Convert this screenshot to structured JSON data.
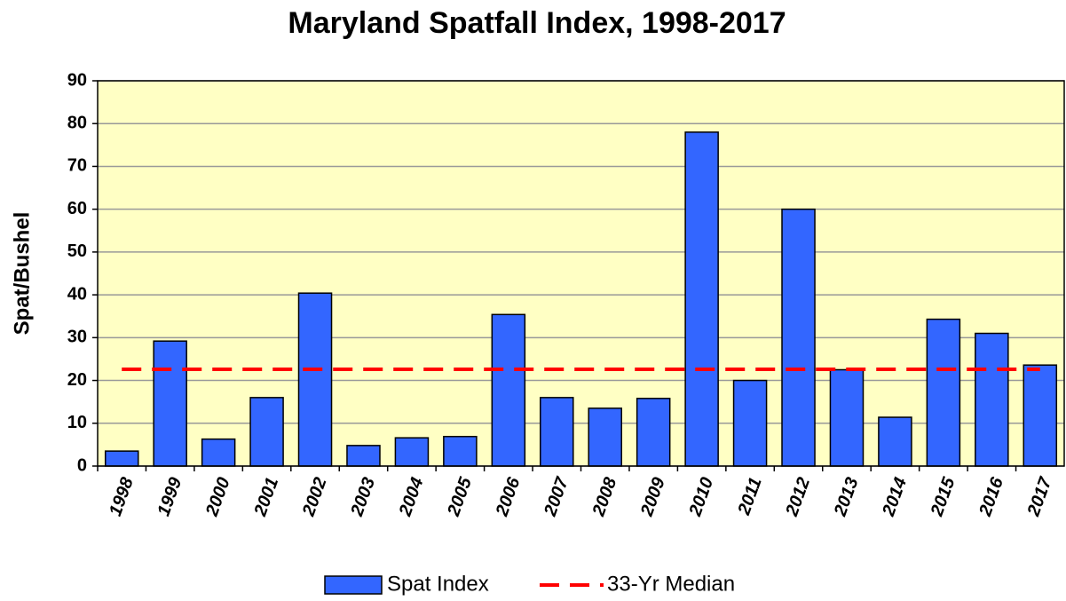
{
  "chart_data": {
    "type": "bar",
    "title": "Maryland Spatfall Index, 1998-2017",
    "ylabel": "Spat/Bushel",
    "categories": [
      "1998",
      "1999",
      "2000",
      "2001",
      "2002",
      "2003",
      "2004",
      "2005",
      "2006",
      "2007",
      "2008",
      "2009",
      "2010",
      "2011",
      "2012",
      "2013",
      "2014",
      "2015",
      "2016",
      "2017"
    ],
    "series": [
      {
        "name": "Spat Index",
        "type": "bar",
        "color": "#3366ff",
        "values": [
          3.5,
          29.2,
          6.3,
          16,
          40.4,
          4.8,
          6.6,
          6.9,
          35.4,
          16,
          13.5,
          15.8,
          78,
          20,
          60,
          22.5,
          11.4,
          34.3,
          31,
          23.6
        ]
      },
      {
        "name": "33-Yr Median",
        "type": "line",
        "color": "#ff0000",
        "values": [
          22.6,
          22.6,
          22.6,
          22.6,
          22.6,
          22.6,
          22.6,
          22.6,
          22.6,
          22.6,
          22.6,
          22.6,
          22.6,
          22.6,
          22.6,
          22.6,
          22.6,
          22.6,
          22.6,
          22.6
        ]
      }
    ],
    "ylim": [
      0,
      90
    ],
    "yticks": [
      0,
      10,
      20,
      30,
      40,
      50,
      60,
      70,
      80,
      90
    ],
    "grid": true,
    "background": "#ffffc4",
    "legend": "bottom"
  }
}
